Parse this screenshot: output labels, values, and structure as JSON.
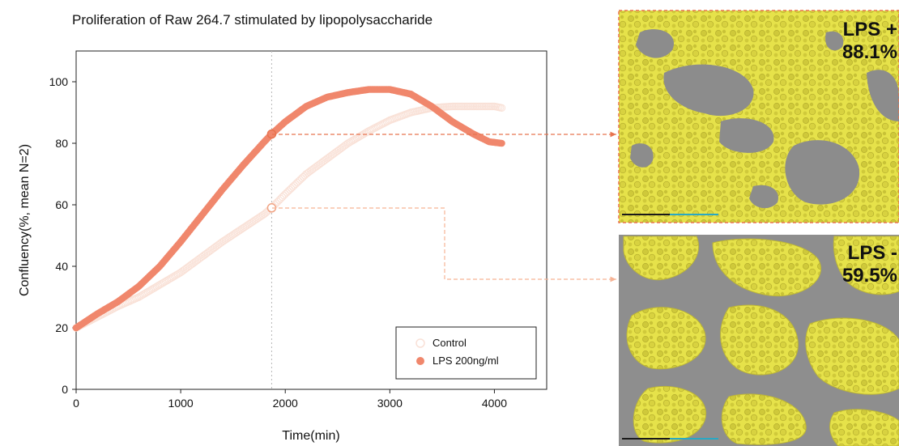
{
  "chart_data": {
    "type": "scatter",
    "title": "Proliferation of Raw 264.7 stimulated by lipopolysaccharide",
    "xlabel": "Time(min)",
    "ylabel": "Confluency(%, mean N=2)",
    "xlim": [
      0,
      4500
    ],
    "ylim": [
      0,
      110
    ],
    "xticks": [
      0,
      1000,
      2000,
      3000,
      4000
    ],
    "yticks": [
      0,
      20,
      40,
      60,
      80,
      100
    ],
    "grid": false,
    "legend": "bottom-right",
    "reference_time": 1870,
    "series": [
      {
        "name": "Control",
        "color": "#f9e1d7",
        "marker": "open-circle",
        "highlight": 59,
        "points": [
          [
            0,
            20
          ],
          [
            200,
            23.5
          ],
          [
            400,
            27
          ],
          [
            600,
            30
          ],
          [
            800,
            34
          ],
          [
            1000,
            38
          ],
          [
            1200,
            43
          ],
          [
            1400,
            48
          ],
          [
            1600,
            52.5
          ],
          [
            1800,
            57
          ],
          [
            1870,
            59
          ],
          [
            2000,
            63.5
          ],
          [
            2200,
            70
          ],
          [
            2400,
            75
          ],
          [
            2600,
            80
          ],
          [
            2800,
            84
          ],
          [
            3000,
            87.5
          ],
          [
            3200,
            90
          ],
          [
            3400,
            91.5
          ],
          [
            3600,
            92
          ],
          [
            3800,
            92
          ],
          [
            4000,
            92
          ],
          [
            4070,
            91.5
          ]
        ]
      },
      {
        "name": "LPS 200ng/ml",
        "color": "#f0876c",
        "marker": "filled-circle",
        "highlight": 83,
        "points": [
          [
            0,
            20
          ],
          [
            200,
            24.5
          ],
          [
            400,
            28.5
          ],
          [
            600,
            33.5
          ],
          [
            800,
            40
          ],
          [
            1000,
            48
          ],
          [
            1200,
            56.5
          ],
          [
            1400,
            65
          ],
          [
            1600,
            73
          ],
          [
            1800,
            80.5
          ],
          [
            1870,
            83
          ],
          [
            2000,
            87
          ],
          [
            2200,
            92
          ],
          [
            2400,
            95
          ],
          [
            2600,
            96.5
          ],
          [
            2800,
            97.5
          ],
          [
            3000,
            97.5
          ],
          [
            3200,
            96
          ],
          [
            3400,
            92
          ],
          [
            3600,
            87
          ],
          [
            3800,
            83
          ],
          [
            3950,
            80.5
          ],
          [
            4070,
            80
          ]
        ]
      }
    ]
  },
  "panels": {
    "lps_plus": {
      "label": "LPS +",
      "value": "88.1%",
      "border_color": "#e8734f"
    },
    "lps_minus": {
      "label": "LPS -",
      "value": "59.5%",
      "border_color": "#f6b395"
    }
  }
}
